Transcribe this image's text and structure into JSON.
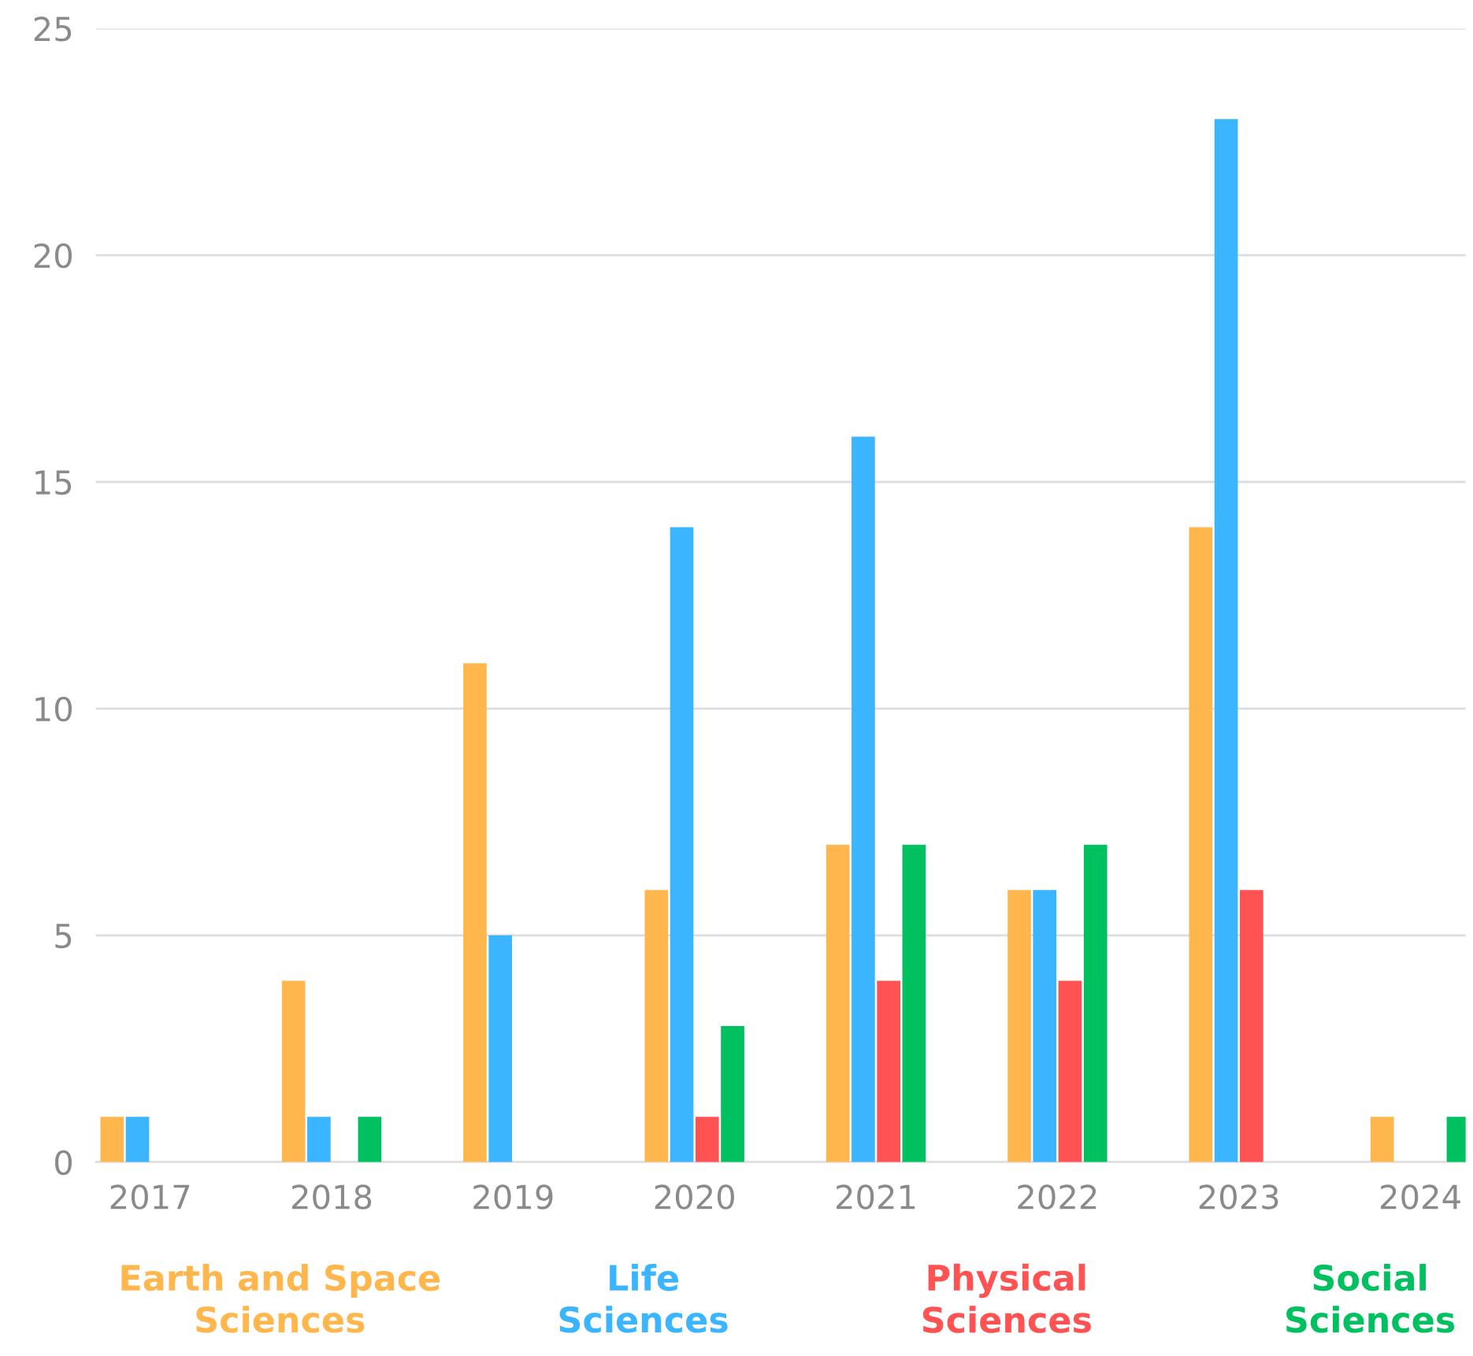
{
  "chart_data": {
    "type": "bar",
    "categories": [
      "2017",
      "2018",
      "2019",
      "2020",
      "2021",
      "2022",
      "2023",
      "2024"
    ],
    "series": [
      {
        "name": "Earth and Space Sciences",
        "color": "#ffb74d",
        "values": [
          1,
          4,
          11,
          6,
          7,
          6,
          14,
          1
        ]
      },
      {
        "name": "Life Sciences",
        "color": "#3bb5ff",
        "values": [
          1,
          1,
          5,
          14,
          16,
          6,
          23,
          0
        ]
      },
      {
        "name": "Physical Sciences",
        "color": "#ff5252",
        "values": [
          0,
          0,
          0,
          1,
          4,
          4,
          6,
          0
        ]
      },
      {
        "name": "Social Sciences",
        "color": "#00c060",
        "values": [
          0,
          1,
          0,
          3,
          7,
          7,
          0,
          1
        ]
      }
    ],
    "ylim": [
      0,
      25
    ],
    "yticks": [
      0,
      5,
      10,
      15,
      20,
      25
    ],
    "grid": "y",
    "legend": "bottom"
  }
}
